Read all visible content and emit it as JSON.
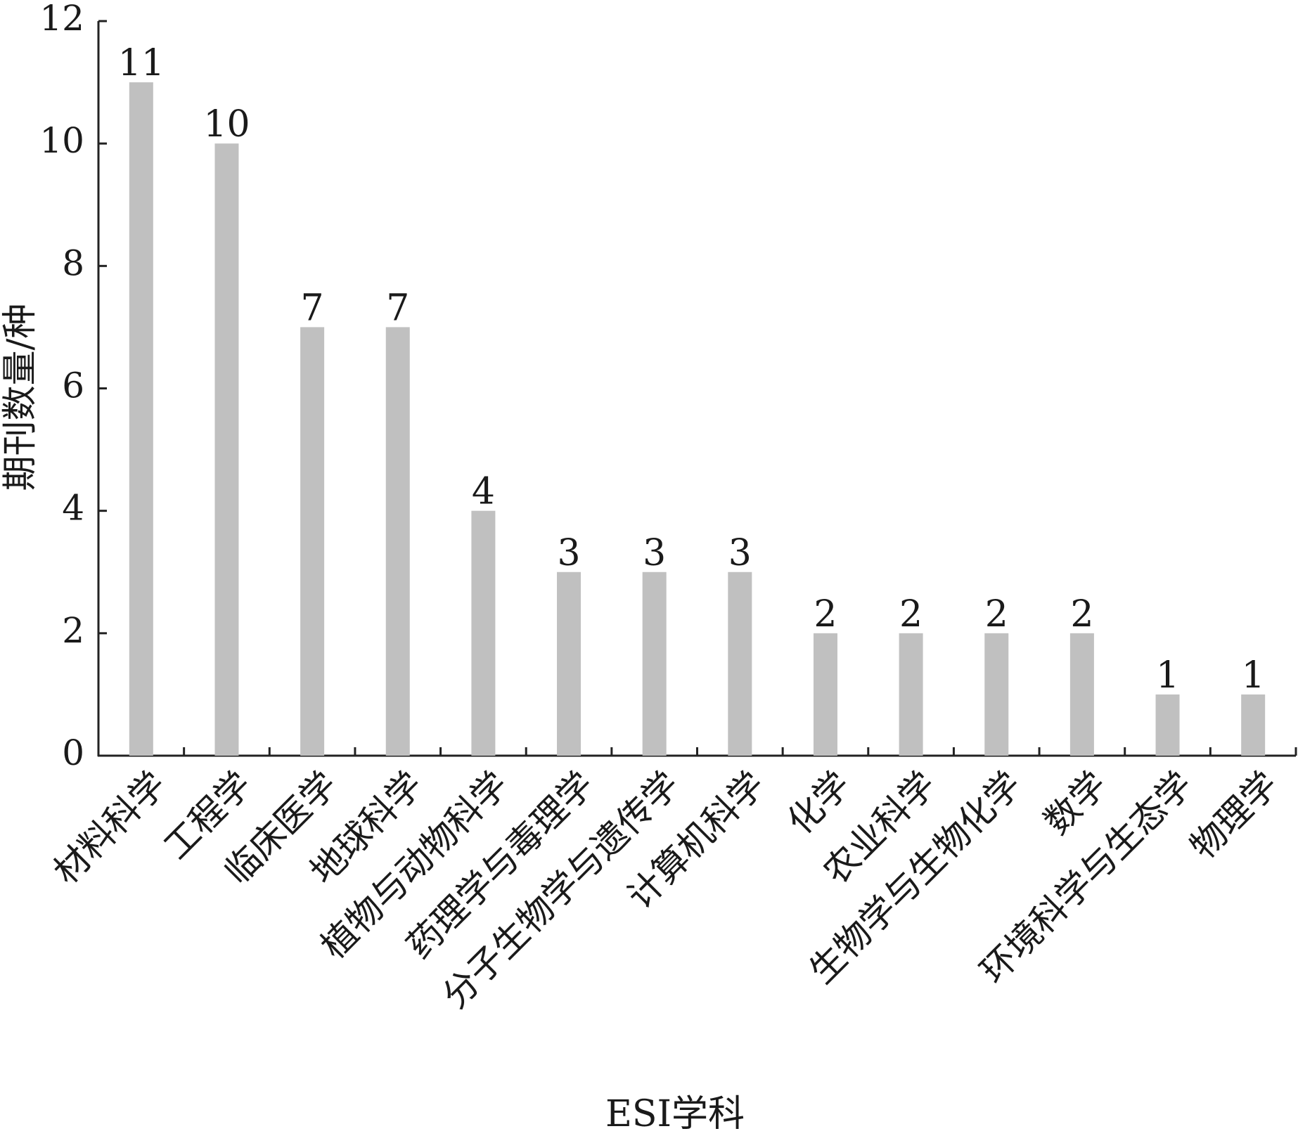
{
  "chart_data": {
    "type": "bar",
    "categories": [
      "材料科学",
      "工程学",
      "临床医学",
      "地球科学",
      "植物与动物科学",
      "药理学与毒理学",
      "分子生物学与遗传学",
      "计算机科学",
      "化学",
      "农业科学",
      "生物学与生物化学",
      "数学",
      "环境科学与生态学",
      "物理学"
    ],
    "values": [
      11,
      10,
      7,
      7,
      4,
      3,
      3,
      3,
      2,
      2,
      2,
      2,
      1,
      1
    ],
    "data_labels": [
      "11",
      "10",
      "7",
      "7",
      "4",
      "3",
      "3",
      "3",
      "2",
      "2",
      "2",
      "2",
      "1",
      "1"
    ],
    "xlabel": "ESI学科",
    "ylabel": "期刊数量/种",
    "ylim": [
      0,
      12
    ],
    "yticks": [
      "0",
      "2",
      "4",
      "6",
      "8",
      "10",
      "12"
    ],
    "grid": false,
    "bar_color": "#c0c0c0"
  }
}
